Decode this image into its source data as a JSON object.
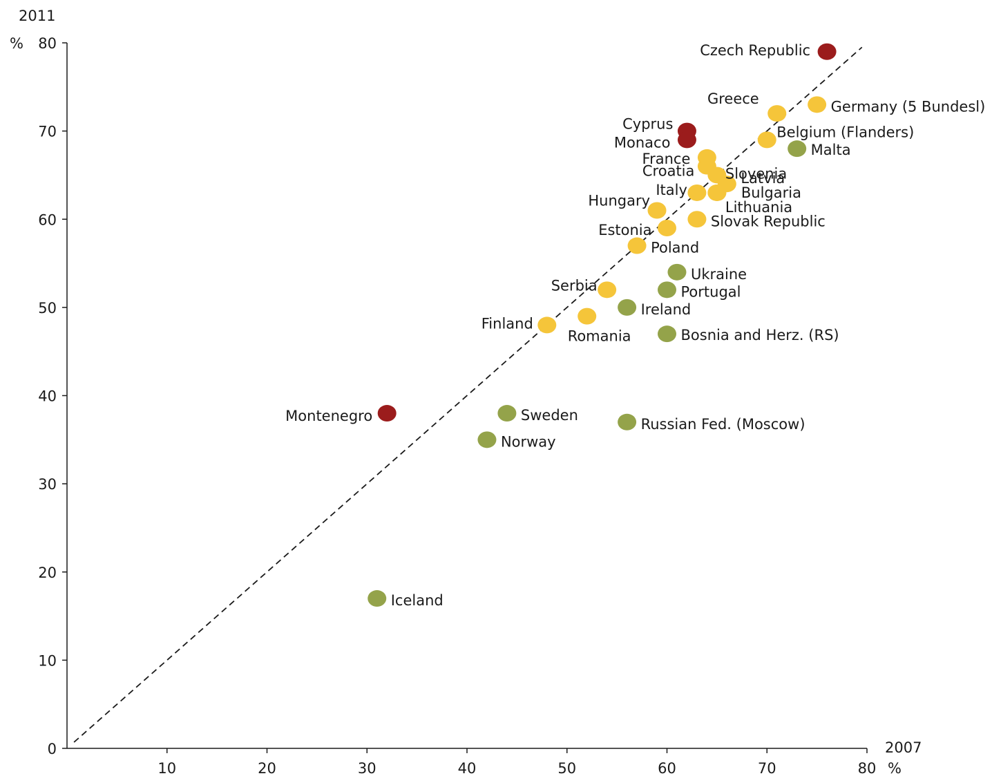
{
  "chart_data": {
    "type": "scatter",
    "title": "",
    "xlabel": "2007",
    "ylabel": "2011",
    "x_unit": "%",
    "y_unit": "%",
    "xlim": [
      0,
      80
    ],
    "ylim": [
      0,
      80
    ],
    "x_ticks": [
      "10",
      "20",
      "30",
      "40",
      "50",
      "60",
      "70",
      "80"
    ],
    "y_ticks": [
      "0",
      "10",
      "20",
      "30",
      "40",
      "50",
      "60",
      "70",
      "80"
    ],
    "grid": false,
    "reference_line": "diagonal y = x, dashed",
    "colors": {
      "red": "#9b1c1c",
      "yellow": "#f5c53a",
      "green": "#94a34a"
    },
    "points": [
      {
        "label": "Czech Republic",
        "x": 76,
        "y": 79,
        "color": "red"
      },
      {
        "label": "Greece",
        "x": 71,
        "y": 72,
        "color": "yellow"
      },
      {
        "label": "Germany (5 Bundesl)",
        "x": 75,
        "y": 73,
        "color": "yellow"
      },
      {
        "label": "Cyprus",
        "x": 62,
        "y": 70,
        "color": "red"
      },
      {
        "label": "Monaco",
        "x": 62,
        "y": 69,
        "color": "red"
      },
      {
        "label": "Belgium (Flanders)",
        "x": 70,
        "y": 69,
        "color": "yellow"
      },
      {
        "label": "Malta",
        "x": 73,
        "y": 68,
        "color": "green"
      },
      {
        "label": "France",
        "x": 64,
        "y": 67,
        "color": "yellow"
      },
      {
        "label": "Croatia",
        "x": 64,
        "y": 66,
        "color": "yellow"
      },
      {
        "label": "Slovenia",
        "x": 65,
        "y": 65,
        "color": "yellow"
      },
      {
        "label": "Latvia",
        "x": 66,
        "y": 64,
        "color": "yellow"
      },
      {
        "label": "Italy",
        "x": 63,
        "y": 63,
        "color": "yellow"
      },
      {
        "label": "Bulgaria",
        "x": 65,
        "y": 63,
        "color": "yellow"
      },
      {
        "label": "Lithuania",
        "x": 65,
        "y": 63,
        "color": "yellow"
      },
      {
        "label": "Hungary",
        "x": 59,
        "y": 61,
        "color": "yellow"
      },
      {
        "label": "Slovak Republic",
        "x": 63,
        "y": 60,
        "color": "yellow"
      },
      {
        "label": "Estonia",
        "x": 60,
        "y": 59,
        "color": "yellow"
      },
      {
        "label": "Poland",
        "x": 57,
        "y": 57,
        "color": "yellow"
      },
      {
        "label": "Ukraine",
        "x": 61,
        "y": 54,
        "color": "green"
      },
      {
        "label": "Serbia",
        "x": 54,
        "y": 52,
        "color": "yellow"
      },
      {
        "label": "Portugal",
        "x": 60,
        "y": 52,
        "color": "green"
      },
      {
        "label": "Ireland",
        "x": 56,
        "y": 50,
        "color": "green"
      },
      {
        "label": "Finland",
        "x": 48,
        "y": 48,
        "color": "yellow"
      },
      {
        "label": "Romania",
        "x": 52,
        "y": 49,
        "color": "yellow"
      },
      {
        "label": "Bosnia and Herz. (RS)",
        "x": 60,
        "y": 47,
        "color": "green"
      },
      {
        "label": "Montenegro",
        "x": 32,
        "y": 38,
        "color": "red"
      },
      {
        "label": "Sweden",
        "x": 44,
        "y": 38,
        "color": "green"
      },
      {
        "label": "Russian Fed. (Moscow)",
        "x": 56,
        "y": 37,
        "color": "green"
      },
      {
        "label": "Norway",
        "x": 42,
        "y": 35,
        "color": "green"
      },
      {
        "label": "Iceland",
        "x": 31,
        "y": 17,
        "color": "green"
      }
    ]
  }
}
